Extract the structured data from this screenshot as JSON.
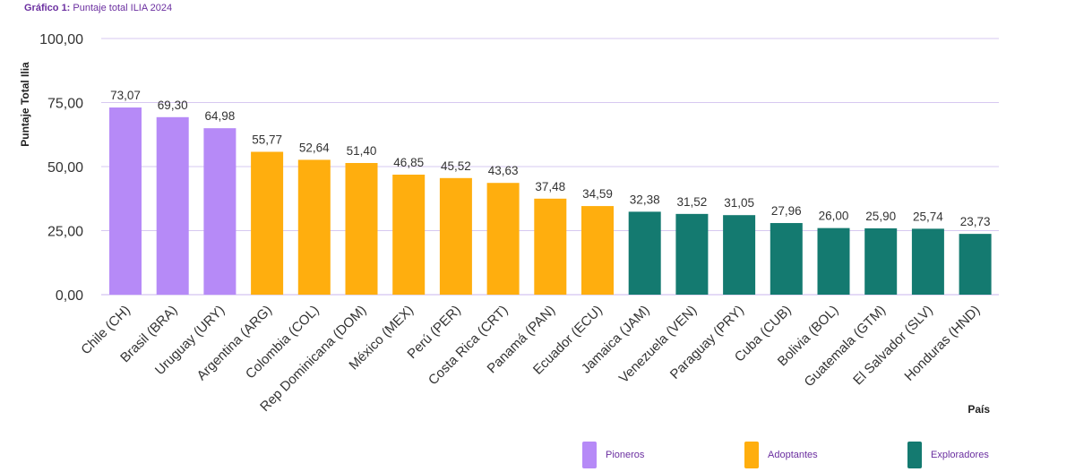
{
  "caption": {
    "prefix": "Gráfico 1:",
    "text": "Puntaje total ILIA 2024"
  },
  "colors": {
    "pioneros": "#B68AF7",
    "adoptantes": "#FFAE0E",
    "exploradores": "#147A70",
    "grid": "#D7C8F0",
    "axis": "#C9B6EC"
  },
  "legend": [
    {
      "label": "Pioneros",
      "group": "pioneros"
    },
    {
      "label": "Adoptantes",
      "group": "adoptantes"
    },
    {
      "label": "Exploradores",
      "group": "exploradores"
    }
  ],
  "chart_data": {
    "type": "bar",
    "title": "Puntaje total ILIA 2024",
    "xlabel": "País",
    "ylabel": "Puntaje Total Ilia",
    "ylim": [
      0,
      100
    ],
    "yticks": [
      0,
      25,
      50,
      75,
      100
    ],
    "ytick_labels": [
      "0,00",
      "25,00",
      "50,00",
      "75,00",
      "100,00"
    ],
    "grid": true,
    "categories": [
      "Chile (CH)",
      "Brasil (BRA)",
      "Uruguay (URY)",
      "Argentina (ARG)",
      "Colombia (COL)",
      "Rep Dominicana (DOM)",
      "México (MEX)",
      "Perú (PER)",
      "Costa Rica (CRT)",
      "Panamá (PAN)",
      "Ecuador (ECU)",
      "Jamaica (JAM)",
      "Venezuela (VEN)",
      "Paraguay (PRY)",
      "Cuba (CUB)",
      "Bolivia (BOL)",
      "Guatemala (GTM)",
      "El Salvador (SLV)",
      "Honduras (HND)"
    ],
    "values": [
      73.07,
      69.3,
      64.98,
      55.77,
      52.64,
      51.4,
      46.85,
      45.52,
      43.63,
      37.48,
      34.59,
      32.38,
      31.52,
      31.05,
      27.96,
      26.0,
      25.9,
      25.74,
      23.73
    ],
    "value_labels": [
      "73,07",
      "69,30",
      "64,98",
      "55,77",
      "52,64",
      "51,40",
      "46,85",
      "45,52",
      "43,63",
      "37,48",
      "34,59",
      "32,38",
      "31,52",
      "31,05",
      "27,96",
      "26,00",
      "25,90",
      "25,74",
      "23,73"
    ],
    "groups": [
      "pioneros",
      "pioneros",
      "pioneros",
      "adoptantes",
      "adoptantes",
      "adoptantes",
      "adoptantes",
      "adoptantes",
      "adoptantes",
      "adoptantes",
      "adoptantes",
      "exploradores",
      "exploradores",
      "exploradores",
      "exploradores",
      "exploradores",
      "exploradores",
      "exploradores",
      "exploradores"
    ]
  }
}
